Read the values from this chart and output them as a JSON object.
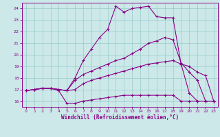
{
  "title": "",
  "xlabel": "Windchill (Refroidissement éolien,°C)",
  "bg_color": "#cce8e8",
  "grid_color": "#99cccc",
  "line_color": "#880088",
  "spine_color": "#880088",
  "xlim": [
    -0.5,
    23.5
  ],
  "ylim": [
    15.5,
    24.5
  ],
  "xticks": [
    0,
    1,
    2,
    3,
    4,
    5,
    6,
    7,
    8,
    9,
    10,
    11,
    12,
    13,
    14,
    15,
    16,
    17,
    18,
    19,
    20,
    21,
    22,
    23
  ],
  "yticks": [
    16,
    17,
    18,
    19,
    20,
    21,
    22,
    23,
    24
  ],
  "line1_x": [
    0,
    1,
    2,
    3,
    4,
    5,
    6,
    7,
    8,
    9,
    10,
    11,
    12,
    13,
    14,
    15,
    16,
    17,
    18,
    19,
    20,
    21,
    22,
    23
  ],
  "line1_y": [
    16.9,
    17.0,
    17.1,
    17.1,
    16.9,
    15.8,
    15.8,
    16.0,
    16.1,
    16.2,
    16.3,
    16.4,
    16.5,
    16.5,
    16.5,
    16.5,
    16.5,
    16.5,
    16.5,
    16.0,
    16.0,
    16.0,
    16.0,
    16.0
  ],
  "line2_x": [
    0,
    1,
    2,
    3,
    4,
    5,
    6,
    7,
    8,
    9,
    10,
    11,
    12,
    13,
    14,
    15,
    16,
    17,
    18,
    19,
    20,
    21,
    22,
    23
  ],
  "line2_y": [
    16.9,
    17.0,
    17.1,
    17.1,
    17.0,
    16.9,
    18.0,
    19.5,
    20.5,
    21.5,
    22.2,
    24.2,
    23.7,
    24.0,
    24.1,
    24.2,
    23.3,
    23.2,
    23.2,
    19.2,
    16.7,
    16.0,
    16.0,
    16.0
  ],
  "line3_x": [
    0,
    1,
    2,
    3,
    4,
    5,
    6,
    7,
    8,
    9,
    10,
    11,
    12,
    13,
    14,
    15,
    16,
    17,
    18,
    19,
    20,
    21,
    22,
    23
  ],
  "line3_y": [
    16.9,
    17.0,
    17.1,
    17.1,
    17.0,
    16.9,
    17.8,
    18.3,
    18.6,
    18.9,
    19.2,
    19.5,
    19.7,
    20.1,
    20.5,
    21.0,
    21.2,
    21.5,
    21.3,
    19.3,
    18.5,
    17.8,
    16.0,
    16.0
  ],
  "line4_x": [
    0,
    1,
    2,
    3,
    4,
    5,
    6,
    7,
    8,
    9,
    10,
    11,
    12,
    13,
    14,
    15,
    16,
    17,
    18,
    19,
    20,
    21,
    22,
    23
  ],
  "line4_y": [
    16.9,
    17.0,
    17.1,
    17.1,
    17.0,
    16.9,
    17.0,
    17.5,
    17.8,
    18.0,
    18.2,
    18.4,
    18.6,
    18.8,
    19.0,
    19.2,
    19.3,
    19.4,
    19.5,
    19.2,
    19.0,
    18.5,
    18.2,
    16.0
  ]
}
